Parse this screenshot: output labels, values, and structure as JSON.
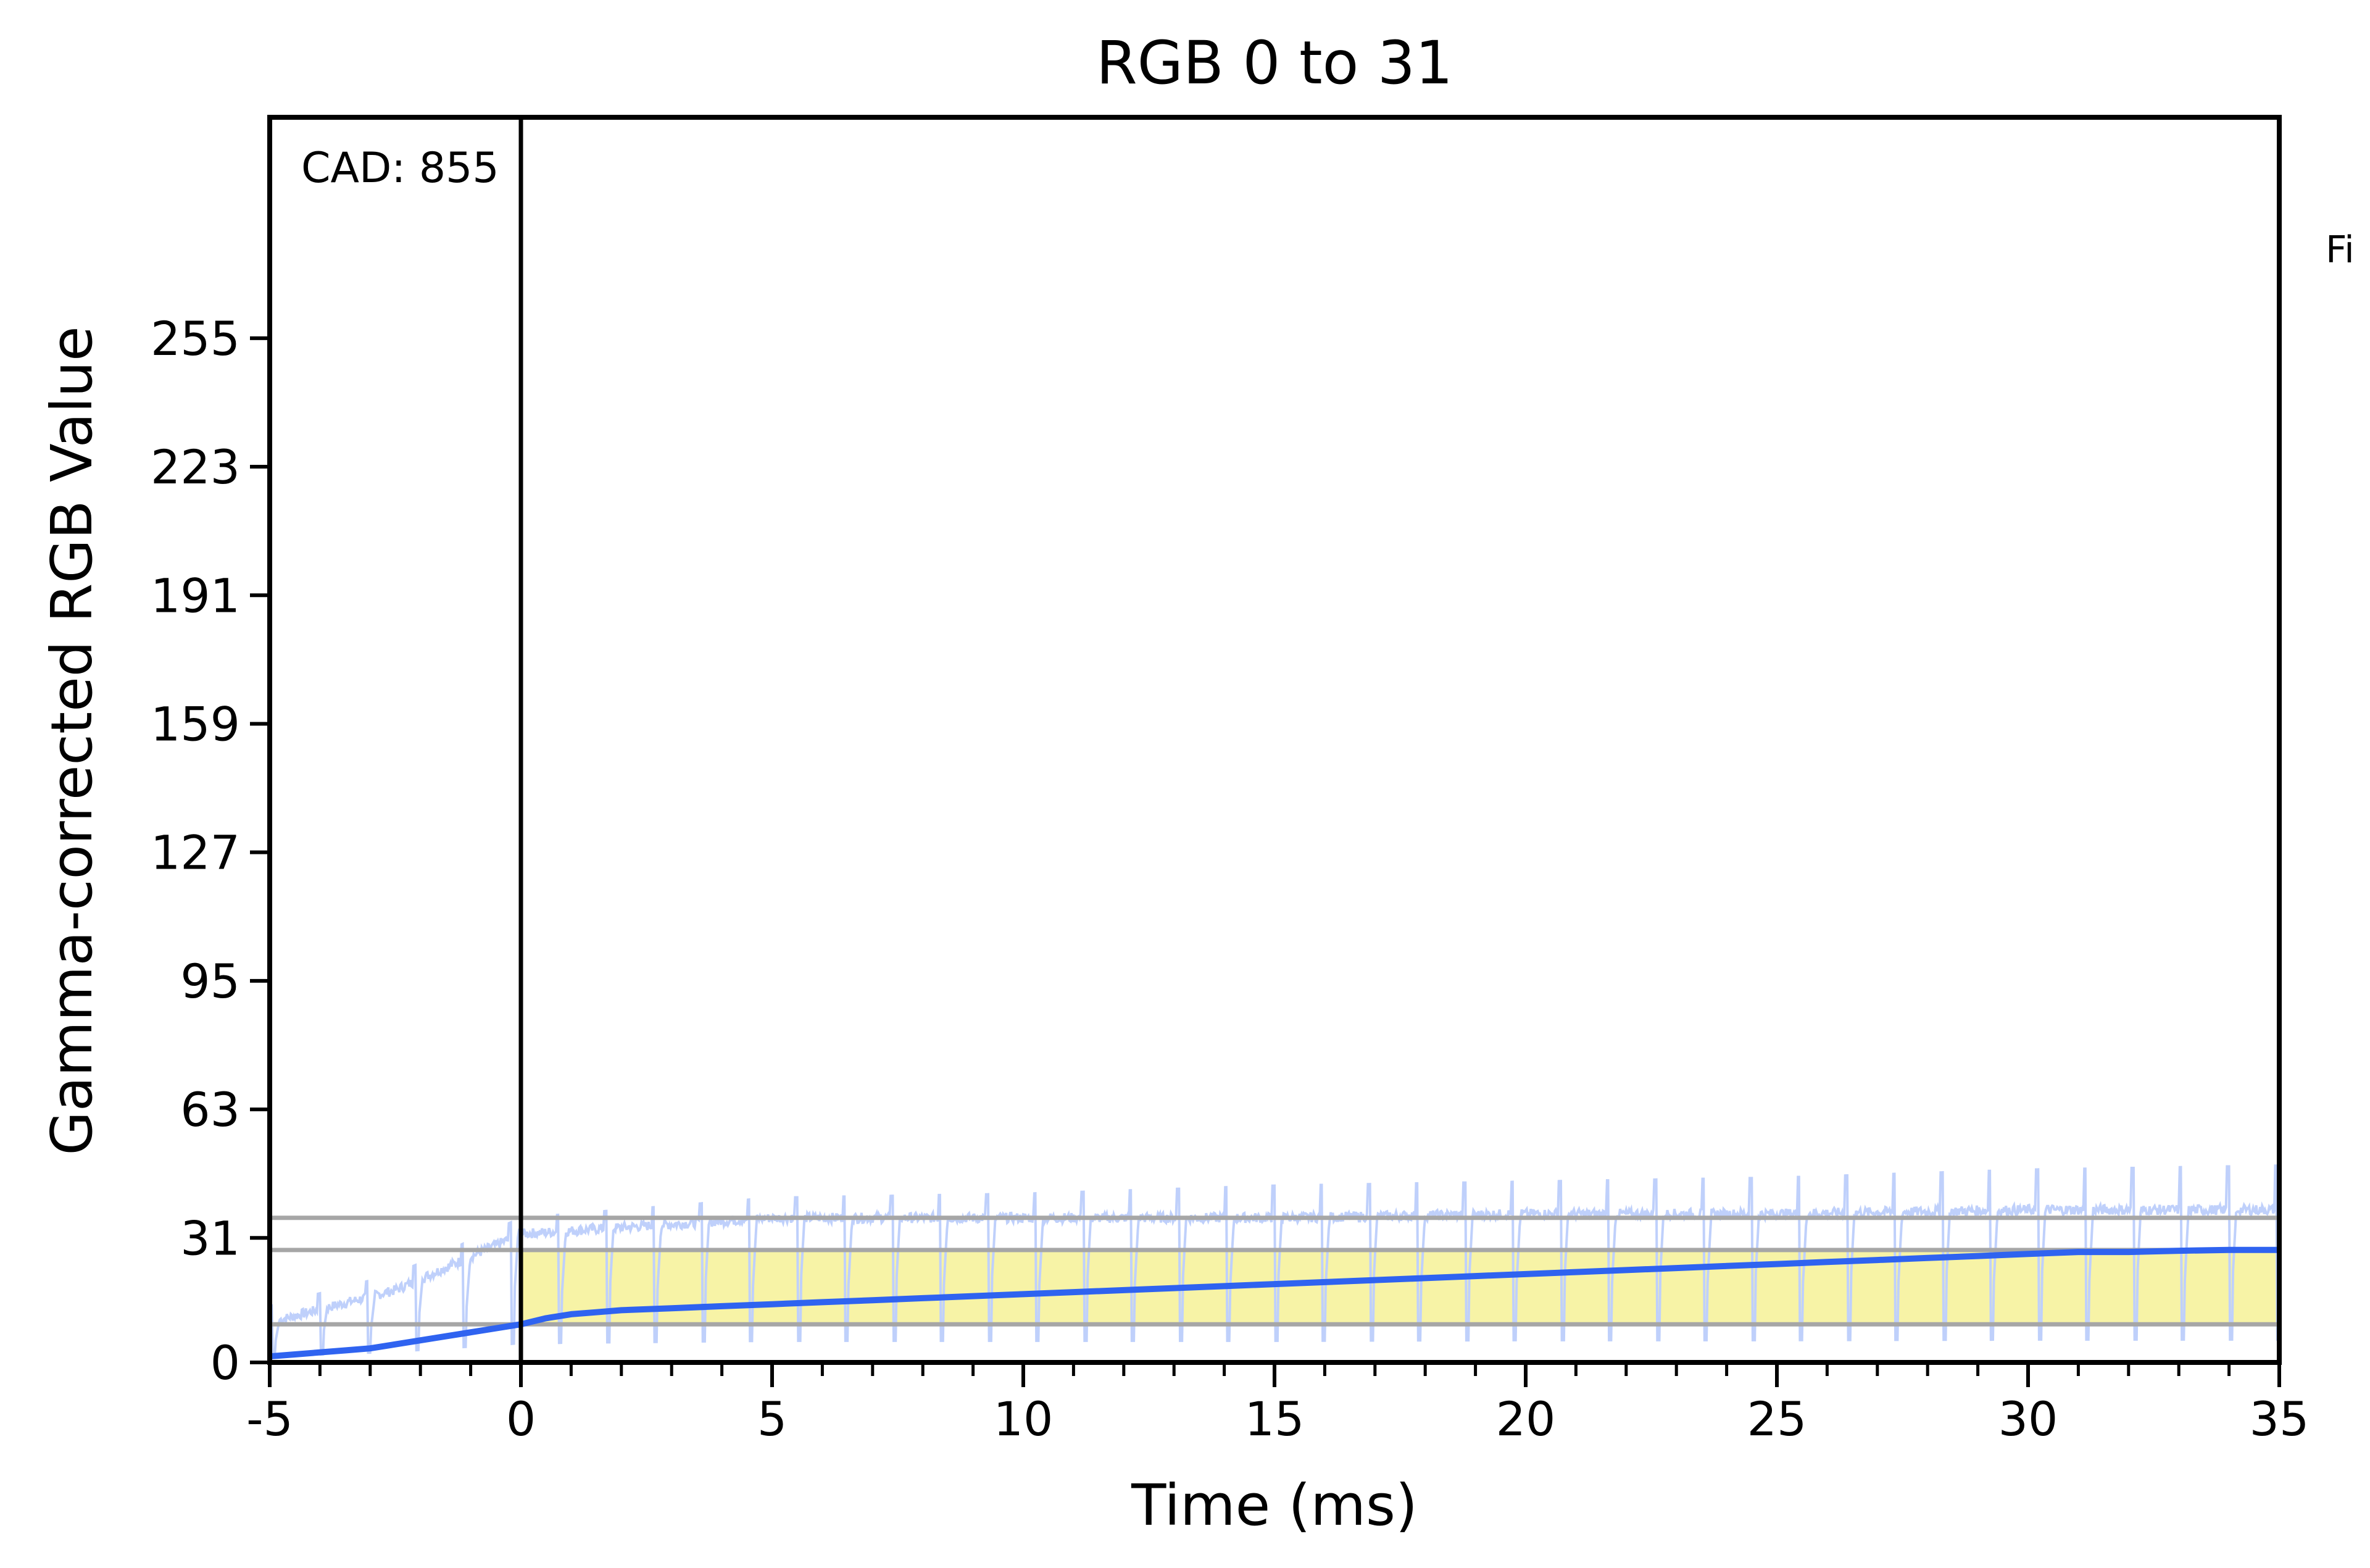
{
  "chart_data": {
    "type": "line",
    "title": "RGB 0 to 31",
    "xlabel": "Time (ms)",
    "ylabel": "Gamma-corrected RGB Value",
    "xlim": [
      -5,
      35
    ],
    "ylim": [
      0,
      310
    ],
    "x_ticks": [
      -5,
      0,
      5,
      10,
      15,
      20,
      25,
      30,
      35
    ],
    "y_ticks": [
      0,
      31,
      63,
      95,
      127,
      159,
      191,
      223,
      255
    ],
    "grid": false,
    "annotation": "CAD: 855",
    "side_label": "Fi",
    "reference_lines": [
      36,
      28,
      9.5
    ],
    "event_marker_x": 0,
    "shaded_region": {
      "x_start": 0,
      "x_end": 35,
      "y_low": 9.5,
      "y_high": 28,
      "color": "#f7f3a6"
    },
    "series": [
      {
        "color": "#2f63f0",
        "x": [
          -5,
          -4.5,
          -4,
          -3.5,
          -3,
          -2.5,
          -2,
          -1.5,
          -1,
          -0.5,
          0,
          0.5,
          1,
          1.5,
          2,
          3,
          4,
          5,
          6,
          7,
          8,
          9,
          10,
          11,
          12,
          13,
          14,
          15,
          16,
          17,
          18,
          19,
          20,
          21,
          22,
          23,
          24,
          25,
          26,
          27,
          28,
          29,
          30,
          31,
          32,
          33,
          34,
          35
        ],
        "y": [
          1.5,
          2,
          2.5,
          3,
          3.5,
          4.5,
          5.5,
          6.5,
          7.5,
          8.5,
          9.5,
          11,
          12,
          12.5,
          13,
          13.5,
          14,
          14.5,
          15,
          15.5,
          16,
          16.5,
          17,
          17.5,
          18,
          18.5,
          19,
          19.5,
          20,
          20.5,
          21,
          21.5,
          22,
          22.5,
          23,
          23.5,
          24,
          24.5,
          25,
          25.5,
          26,
          26.5,
          27,
          27.5,
          27.5,
          27.8,
          28,
          28
        ]
      },
      {
        "color": "#bfd0fb",
        "raw_signal": true,
        "pulse_period_ms": 0.95,
        "x": [
          -5,
          -2.5,
          0,
          5,
          10,
          15,
          20,
          25,
          30,
          35
        ],
        "baseline": [
          10,
          18,
          32,
          36,
          36,
          36,
          37,
          37,
          38,
          38
        ],
        "peak": [
          14,
          22,
          36,
          41,
          42,
          44,
          45,
          46,
          48,
          49
        ]
      }
    ]
  }
}
